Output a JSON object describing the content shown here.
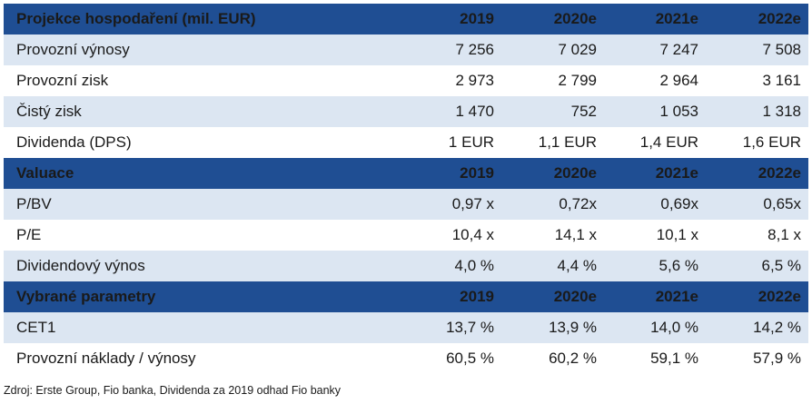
{
  "sections": [
    {
      "header": [
        "Projekce hospodaření (mil. EUR)",
        "2019",
        "2020e",
        "2021e",
        "2022e"
      ],
      "rows": [
        [
          "Provozní výnosy",
          "7 256",
          "7 029",
          "7 247",
          "7 508"
        ],
        [
          "Provozní zisk",
          "2 973",
          "2 799",
          "2 964",
          "3 161"
        ],
        [
          "Čistý zisk",
          "1 470",
          "752",
          "1 053",
          "1 318"
        ],
        [
          "Dividenda (DPS)",
          "1 EUR",
          "1,1 EUR",
          "1,4 EUR",
          "1,6 EUR"
        ]
      ]
    },
    {
      "header": [
        "Valuace",
        "2019",
        "2020e",
        "2021e",
        "2022e"
      ],
      "rows": [
        [
          "P/BV",
          "0,97 x",
          "0,72x",
          "0,69x",
          "0,65x"
        ],
        [
          "P/E",
          "10,4 x",
          "14,1 x",
          "10,1 x",
          "8,1 x"
        ],
        [
          "Dividendový výnos",
          "4,0 %",
          "4,4 %",
          "5,6 %",
          "6,5 %"
        ]
      ]
    },
    {
      "header": [
        "Vybrané parametry",
        "2019",
        "2020e",
        "2021e",
        "2022e"
      ],
      "rows": [
        [
          "CET1",
          "13,7 %",
          "13,9 %",
          "14,0 %",
          "14,2 %"
        ],
        [
          "Provozní náklady / výnosy",
          "60,5 %",
          "60,2 %",
          "59,1 %",
          "57,9 %"
        ]
      ]
    }
  ],
  "source": "Zdroj: Erste Group, Fio banka, Dividenda za 2019 odhad Fio banky",
  "colors": {
    "header_bg": "#1f4e93",
    "shaded_row": "#dce6f2"
  }
}
